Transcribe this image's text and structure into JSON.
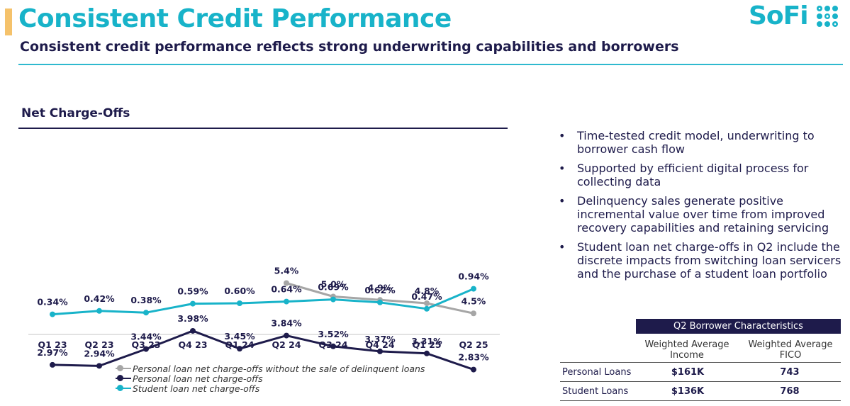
{
  "header": {
    "title": "Consistent Credit Performance",
    "subtitle": "Consistent credit performance reflects strong underwriting capabilities and borrowers",
    "logo_text": "SoFi"
  },
  "colors": {
    "teal": "#18b3c9",
    "navy": "#1e1b4b",
    "gray": "#a6a6a6",
    "gold": "#f5c26b"
  },
  "section": {
    "title": "Net Charge-Offs"
  },
  "chart_data": {
    "type": "line",
    "title": "Net Charge-Offs",
    "categories": [
      "Q1 23",
      "Q2 23",
      "Q3 23",
      "Q4 23",
      "Q1 24",
      "Q2 24",
      "Q3 24",
      "Q4 24",
      "Q1 25",
      "Q2 25"
    ],
    "series": [
      {
        "name": "Personal loan net charge-offs without the sale of delinquent loans",
        "color": "#a6a6a6",
        "values": [
          null,
          null,
          null,
          null,
          null,
          5.4,
          5.0,
          4.9,
          4.8,
          4.5
        ],
        "labels": [
          null,
          null,
          null,
          null,
          null,
          "5.4%",
          "5.0%",
          "4.9%",
          "4.8%",
          "4.5%"
        ]
      },
      {
        "name": "Personal loan net charge-offs",
        "color": "#1e1b4b",
        "values": [
          2.97,
          2.94,
          3.44,
          3.98,
          3.45,
          3.84,
          3.52,
          3.37,
          3.31,
          2.83
        ],
        "labels": [
          "2.97%",
          "2.94%",
          "3.44%",
          "3.98%",
          "3.45%",
          "3.84%",
          "3.52%",
          "3.37%",
          "3.31%",
          "2.83%"
        ]
      },
      {
        "name": "Student loan net charge-offs",
        "color": "#18b3c9",
        "values": [
          0.34,
          0.42,
          0.38,
          0.59,
          0.6,
          0.64,
          0.69,
          0.62,
          0.47,
          0.94
        ],
        "labels": [
          "0.34%",
          "0.42%",
          "0.38%",
          "0.59%",
          "0.60%",
          "0.64%",
          "0.69%",
          "0.62%",
          "0.47%",
          "0.94%"
        ]
      }
    ],
    "ylim": [
      0,
      6
    ],
    "grid": false,
    "legend": "bottom"
  },
  "bullets": [
    "Time-tested credit model, underwriting to borrower cash flow",
    "Supported by efficient digital process for collecting data",
    "Delinquency sales generate positive incremental value over time from improved recovery capabilities and retaining servicing",
    "Student loan net charge-offs in Q2 include the discrete impacts from switching loan servicers and the purchase of a student loan portfolio"
  ],
  "table": {
    "title": "Q2 Borrower Characteristics",
    "col1": "Weighted Average Income",
    "col2": "Weighted Average FICO",
    "rows": [
      {
        "label": "Personal Loans",
        "income": "$161K",
        "fico": "743"
      },
      {
        "label": "Student Loans",
        "income": "$136K",
        "fico": "768"
      }
    ]
  }
}
